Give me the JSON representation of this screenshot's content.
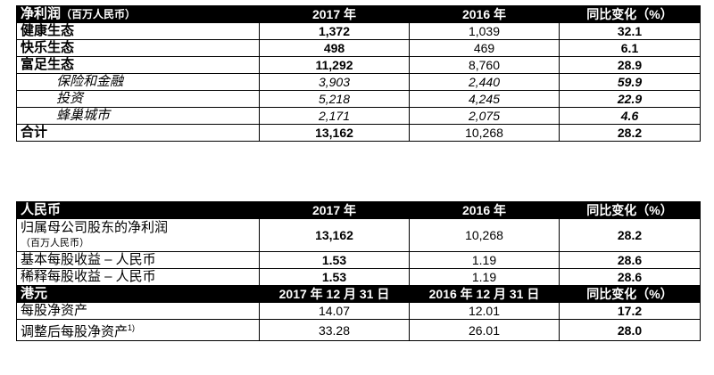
{
  "table1": {
    "header": [
      "净利润",
      "（百万人民币）",
      "2017 年",
      "2016 年",
      "同比变化（%）"
    ],
    "rows": [
      {
        "label": "健康生态",
        "y2017": "1,372",
        "y2016": "1,039",
        "change": "32.1"
      },
      {
        "label": "快乐生态",
        "y2017": "498",
        "y2016": "469",
        "change": "6.1"
      },
      {
        "label": "富足生态",
        "y2017": "11,292",
        "y2016": "8,760",
        "change": "28.9"
      },
      {
        "label": "保险和金融",
        "y2017": "3,903",
        "y2016": "2,440",
        "change": "59.9"
      },
      {
        "label": "投资",
        "y2017": "5,218",
        "y2016": "4,245",
        "change": "22.9"
      },
      {
        "label": "蜂巢城市",
        "y2017": "2,171",
        "y2016": "2,075",
        "change": "4.6"
      },
      {
        "label": "合计",
        "y2017": "13,162",
        "y2016": "10,268",
        "change": "28.2"
      }
    ]
  },
  "table2": {
    "header": [
      "人民币",
      "2017 年",
      "2016 年",
      "同比变化（%）"
    ],
    "rows": [
      {
        "label": "归属母公司股东的净利润",
        "note": "（百万人民币）",
        "y2017": "13,162",
        "y2016": "10,268",
        "change": "28.2"
      },
      {
        "label": "基本每股收益 – 人民币",
        "y2017": "1.53",
        "y2016": "1.19",
        "change": "28.6"
      },
      {
        "label": "稀释每股收益 – 人民币",
        "y2017": "1.53",
        "y2016": "1.19",
        "change": "28.6"
      }
    ],
    "header2": [
      "港元",
      "2017 年 12 月 31 日",
      "2016 年 12 月 31 日",
      "同比变化（%）"
    ],
    "rows2": [
      {
        "label": "每股净资产",
        "sup": "",
        "y2017": "14.07",
        "y2016": "12.01",
        "change": "17.2"
      },
      {
        "label": "调整后每股净资产",
        "sup": "1)",
        "y2017": "33.28",
        "y2016": "26.01",
        "change": "28.0"
      }
    ]
  }
}
